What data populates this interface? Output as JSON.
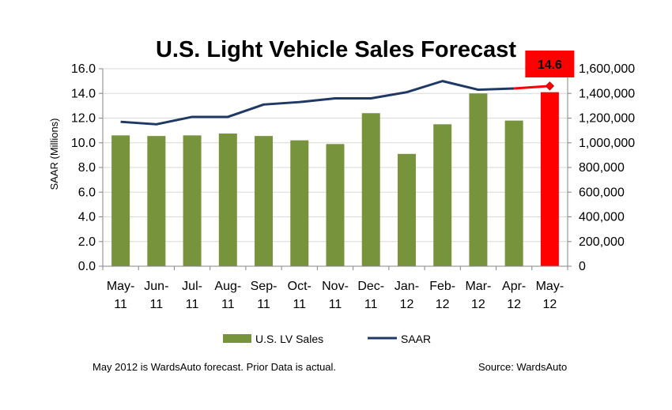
{
  "chart_data": {
    "type": "bar+line",
    "title": "U.S. Light Vehicle Sales Forecast",
    "ylabel": "SAAR (Millions)",
    "ylabel_right": "",
    "ylim": [
      0,
      16
    ],
    "y2lim": [
      0,
      1600000
    ],
    "yticks": [
      "0.0",
      "2.0",
      "4.0",
      "6.0",
      "8.0",
      "10.0",
      "12.0",
      "14.0",
      "16.0"
    ],
    "y2ticks": [
      "0",
      "200,000",
      "400,000",
      "600,000",
      "800,000",
      "1,000,000",
      "1,200,000",
      "1,400,000",
      "1,600,000"
    ],
    "categories": [
      [
        "May-",
        "11"
      ],
      [
        "Jun-",
        "11"
      ],
      [
        "Jul-",
        "11"
      ],
      [
        "Aug-",
        "11"
      ],
      [
        "Sep-",
        "11"
      ],
      [
        "Oct-",
        "11"
      ],
      [
        "Nov-",
        "11"
      ],
      [
        "Dec-",
        "11"
      ],
      [
        "Jan-",
        "12"
      ],
      [
        "Feb-",
        "12"
      ],
      [
        "Mar-",
        "12"
      ],
      [
        "Apr-",
        "12"
      ],
      [
        "May-",
        "12"
      ]
    ],
    "series": [
      {
        "name": "U.S. LV Sales",
        "kind": "bar",
        "axis": "right",
        "color": "#77933C",
        "forecast_color": "#FF0000",
        "values": [
          1060000,
          1055000,
          1060000,
          1075000,
          1055000,
          1020000,
          990000,
          1240000,
          910000,
          1150000,
          1400000,
          1180000,
          1410000
        ]
      },
      {
        "name": "SAAR",
        "kind": "line",
        "axis": "left",
        "color": "#1F3864",
        "forecast_color": "#FF0000",
        "values": [
          11.7,
          11.5,
          12.1,
          12.1,
          13.1,
          13.3,
          13.6,
          13.6,
          14.1,
          15.0,
          14.3,
          14.4,
          14.6
        ]
      }
    ],
    "forecast_index": 12,
    "callout": "14.6",
    "legend_position": "bottom"
  },
  "footer": {
    "note": "May 2012 is WardsAuto forecast. Prior Data is actual.",
    "source": "Source: WardsAuto"
  },
  "colors": {
    "bar": "#77933C",
    "line": "#1F3864",
    "forecast": "#FF0000",
    "axis": "#868686"
  }
}
